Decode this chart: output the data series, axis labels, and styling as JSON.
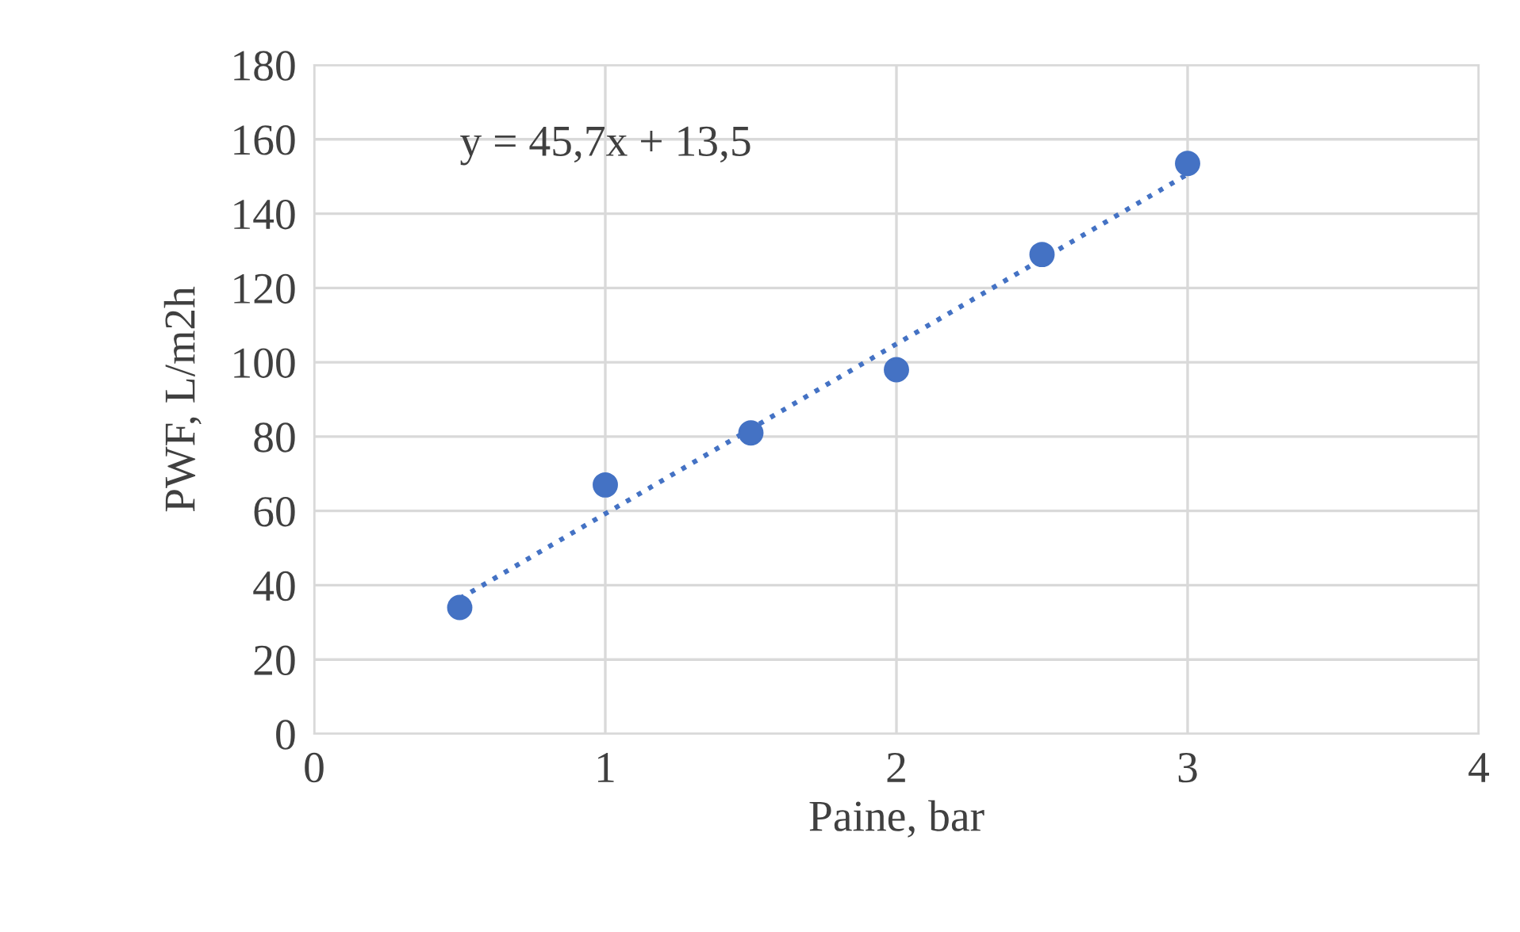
{
  "chart_data": {
    "type": "scatter",
    "xlabel": "Paine, bar",
    "ylabel": "PWF, L/m2h",
    "annotations": [
      "y = 45,7x + 13,5"
    ],
    "x": [
      0.5,
      1,
      1.5,
      2,
      2.5,
      3
    ],
    "series": [
      {
        "type": "scatter",
        "color": "#4472c4",
        "values": [
          34,
          67,
          81,
          98,
          129,
          153.5
        ],
        "marker": "circle"
      },
      {
        "type": "line",
        "color": "#4472c4",
        "x": [
          0.5,
          3
        ],
        "values": [
          36.4,
          150.6
        ],
        "line_style": "dotted",
        "marker": "none"
      }
    ],
    "xlim": [
      0,
      4
    ],
    "xticks": [
      0,
      1,
      2,
      3,
      4
    ],
    "ylim": [
      0,
      180
    ],
    "yticks": [
      0,
      20,
      40,
      60,
      80,
      100,
      120,
      140,
      160,
      180
    ],
    "grid": true,
    "legend": false
  }
}
